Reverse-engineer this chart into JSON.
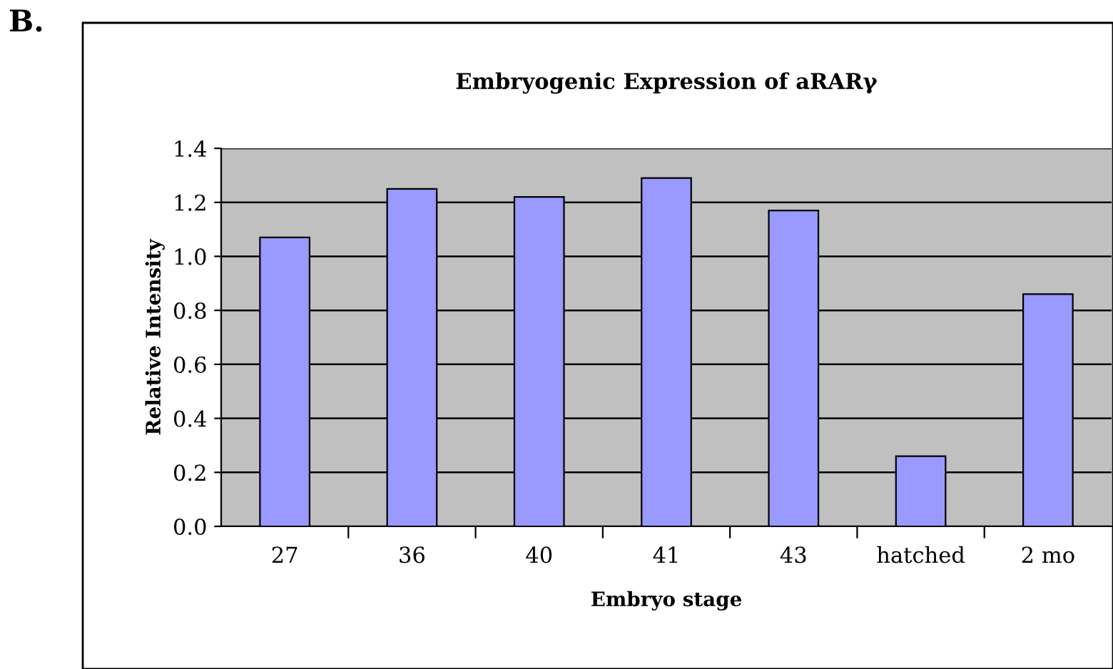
{
  "chart_data": {
    "type": "bar",
    "title": "Embryogenic Expression of aRARγ",
    "xlabel": "Embryo stage",
    "ylabel": "Relative Intensity",
    "categories": [
      "27",
      "36",
      "40",
      "41",
      "43",
      "hatched",
      "2 mo"
    ],
    "values": [
      1.07,
      1.25,
      1.22,
      1.29,
      1.17,
      0.26,
      0.86
    ],
    "color": "#9999ff",
    "ylim": [
      0,
      1.4
    ],
    "yticks": [
      {
        "value": 0,
        "label": "0.0"
      },
      0.2,
      0.4,
      0.6,
      0.8,
      {
        "value": 1,
        "label": "1.0"
      },
      1.2,
      1.4
    ],
    "grid": "y",
    "legend": false,
    "annotations": [
      "B."
    ]
  }
}
